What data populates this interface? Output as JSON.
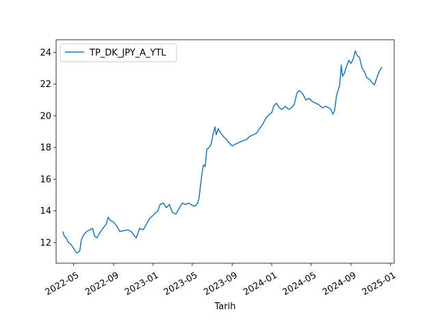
{
  "chart_data": {
    "type": "line",
    "title": "",
    "xlabel": "Tarih",
    "ylabel": "",
    "x_axis": "date",
    "xlim": [
      "2022-03-08",
      "2025-01-12"
    ],
    "ylim": [
      10.7,
      24.8
    ],
    "x_ticks": [
      "2022-05-01",
      "2022-09-01",
      "2023-01-01",
      "2023-05-01",
      "2023-09-01",
      "2024-01-01",
      "2024-05-01",
      "2024-09-01",
      "2025-01-01"
    ],
    "x_tick_labels": [
      "2022-05",
      "2022-09",
      "2023-01",
      "2023-05",
      "2023-09",
      "2024-01",
      "2024-05",
      "2024-09",
      "2025-01"
    ],
    "y_ticks": [
      12,
      14,
      16,
      18,
      20,
      22,
      24
    ],
    "y_tick_labels": [
      "12",
      "14",
      "16",
      "18",
      "20",
      "22",
      "24"
    ],
    "grid": false,
    "legend_position": "top-left",
    "series": [
      {
        "name": "TP_DK_JPY_A_YTL",
        "color": "#1f77b4",
        "points": [
          [
            "2022-03-29",
            12.7
          ],
          [
            "2022-04-02",
            12.4
          ],
          [
            "2022-04-08",
            12.3
          ],
          [
            "2022-04-15",
            12.0
          ],
          [
            "2022-04-22",
            11.9
          ],
          [
            "2022-04-29",
            11.7
          ],
          [
            "2022-05-05",
            11.5
          ],
          [
            "2022-05-10",
            11.35
          ],
          [
            "2022-05-16",
            11.4
          ],
          [
            "2022-05-20",
            11.5
          ],
          [
            "2022-05-25",
            12.2
          ],
          [
            "2022-06-01",
            12.5
          ],
          [
            "2022-06-10",
            12.7
          ],
          [
            "2022-06-20",
            12.8
          ],
          [
            "2022-06-28",
            12.9
          ],
          [
            "2022-07-05",
            12.4
          ],
          [
            "2022-07-12",
            12.3
          ],
          [
            "2022-07-20",
            12.6
          ],
          [
            "2022-07-30",
            12.9
          ],
          [
            "2022-08-10",
            13.2
          ],
          [
            "2022-08-15",
            13.6
          ],
          [
            "2022-08-22",
            13.4
          ],
          [
            "2022-09-01",
            13.3
          ],
          [
            "2022-09-12",
            13.0
          ],
          [
            "2022-09-20",
            12.7
          ],
          [
            "2022-10-01",
            12.75
          ],
          [
            "2022-10-15",
            12.8
          ],
          [
            "2022-10-25",
            12.7
          ],
          [
            "2022-11-05",
            12.4
          ],
          [
            "2022-11-10",
            12.3
          ],
          [
            "2022-11-20",
            12.9
          ],
          [
            "2022-12-01",
            12.8
          ],
          [
            "2022-12-15",
            13.3
          ],
          [
            "2022-12-20",
            13.5
          ],
          [
            "2023-01-05",
            13.8
          ],
          [
            "2023-01-15",
            14.0
          ],
          [
            "2023-01-22",
            14.4
          ],
          [
            "2023-02-01",
            14.5
          ],
          [
            "2023-02-10",
            14.2
          ],
          [
            "2023-02-20",
            14.4
          ],
          [
            "2023-03-01",
            13.9
          ],
          [
            "2023-03-12",
            13.8
          ],
          [
            "2023-03-20",
            14.1
          ],
          [
            "2023-04-01",
            14.5
          ],
          [
            "2023-04-10",
            14.4
          ],
          [
            "2023-04-20",
            14.5
          ],
          [
            "2023-05-01",
            14.35
          ],
          [
            "2023-05-10",
            14.3
          ],
          [
            "2023-05-18",
            14.5
          ],
          [
            "2023-05-22",
            14.8
          ],
          [
            "2023-05-26",
            15.5
          ],
          [
            "2023-06-01",
            16.5
          ],
          [
            "2023-06-05",
            16.9
          ],
          [
            "2023-06-10",
            16.8
          ],
          [
            "2023-06-15",
            17.9
          ],
          [
            "2023-06-22",
            18.0
          ],
          [
            "2023-06-28",
            18.2
          ],
          [
            "2023-07-05",
            18.9
          ],
          [
            "2023-07-10",
            19.3
          ],
          [
            "2023-07-14",
            18.8
          ],
          [
            "2023-07-20",
            19.2
          ],
          [
            "2023-07-28",
            18.9
          ],
          [
            "2023-08-05",
            18.7
          ],
          [
            "2023-08-15",
            18.5
          ],
          [
            "2023-08-22",
            18.3
          ],
          [
            "2023-09-01",
            18.1
          ],
          [
            "2023-09-10",
            18.2
          ],
          [
            "2023-09-20",
            18.3
          ],
          [
            "2023-10-01",
            18.4
          ],
          [
            "2023-10-15",
            18.5
          ],
          [
            "2023-10-25",
            18.7
          ],
          [
            "2023-11-05",
            18.8
          ],
          [
            "2023-11-15",
            18.9
          ],
          [
            "2023-11-25",
            19.2
          ],
          [
            "2023-12-05",
            19.5
          ],
          [
            "2023-12-15",
            19.9
          ],
          [
            "2023-12-25",
            20.1
          ],
          [
            "2024-01-01",
            20.2
          ],
          [
            "2024-01-07",
            20.6
          ],
          [
            "2024-01-15",
            20.8
          ],
          [
            "2024-01-25",
            20.5
          ],
          [
            "2024-02-01",
            20.4
          ],
          [
            "2024-02-12",
            20.6
          ],
          [
            "2024-02-22",
            20.4
          ],
          [
            "2024-03-01",
            20.5
          ],
          [
            "2024-03-10",
            20.7
          ],
          [
            "2024-03-18",
            21.4
          ],
          [
            "2024-03-25",
            21.6
          ],
          [
            "2024-04-05",
            21.4
          ],
          [
            "2024-04-15",
            21.0
          ],
          [
            "2024-04-25",
            21.1
          ],
          [
            "2024-05-05",
            20.9
          ],
          [
            "2024-05-15",
            20.8
          ],
          [
            "2024-05-25",
            20.7
          ],
          [
            "2024-06-05",
            20.5
          ],
          [
            "2024-06-15",
            20.6
          ],
          [
            "2024-06-25",
            20.5
          ],
          [
            "2024-07-01",
            20.4
          ],
          [
            "2024-07-07",
            20.1
          ],
          [
            "2024-07-12",
            20.3
          ],
          [
            "2024-07-18",
            21.2
          ],
          [
            "2024-07-23",
            21.6
          ],
          [
            "2024-07-28",
            21.9
          ],
          [
            "2024-08-02",
            23.2
          ],
          [
            "2024-08-06",
            22.5
          ],
          [
            "2024-08-12",
            22.7
          ],
          [
            "2024-08-18",
            23.1
          ],
          [
            "2024-08-25",
            23.5
          ],
          [
            "2024-09-01",
            23.3
          ],
          [
            "2024-09-08",
            23.6
          ],
          [
            "2024-09-14",
            24.1
          ],
          [
            "2024-09-20",
            23.8
          ],
          [
            "2024-09-27",
            23.7
          ],
          [
            "2024-10-05",
            23.0
          ],
          [
            "2024-10-12",
            22.8
          ],
          [
            "2024-10-20",
            22.4
          ],
          [
            "2024-10-28",
            22.3
          ],
          [
            "2024-11-05",
            22.1
          ],
          [
            "2024-11-12",
            21.95
          ],
          [
            "2024-11-18",
            22.3
          ],
          [
            "2024-11-25",
            22.7
          ],
          [
            "2024-12-02",
            23.0
          ],
          [
            "2024-12-06",
            23.05
          ]
        ]
      }
    ]
  }
}
